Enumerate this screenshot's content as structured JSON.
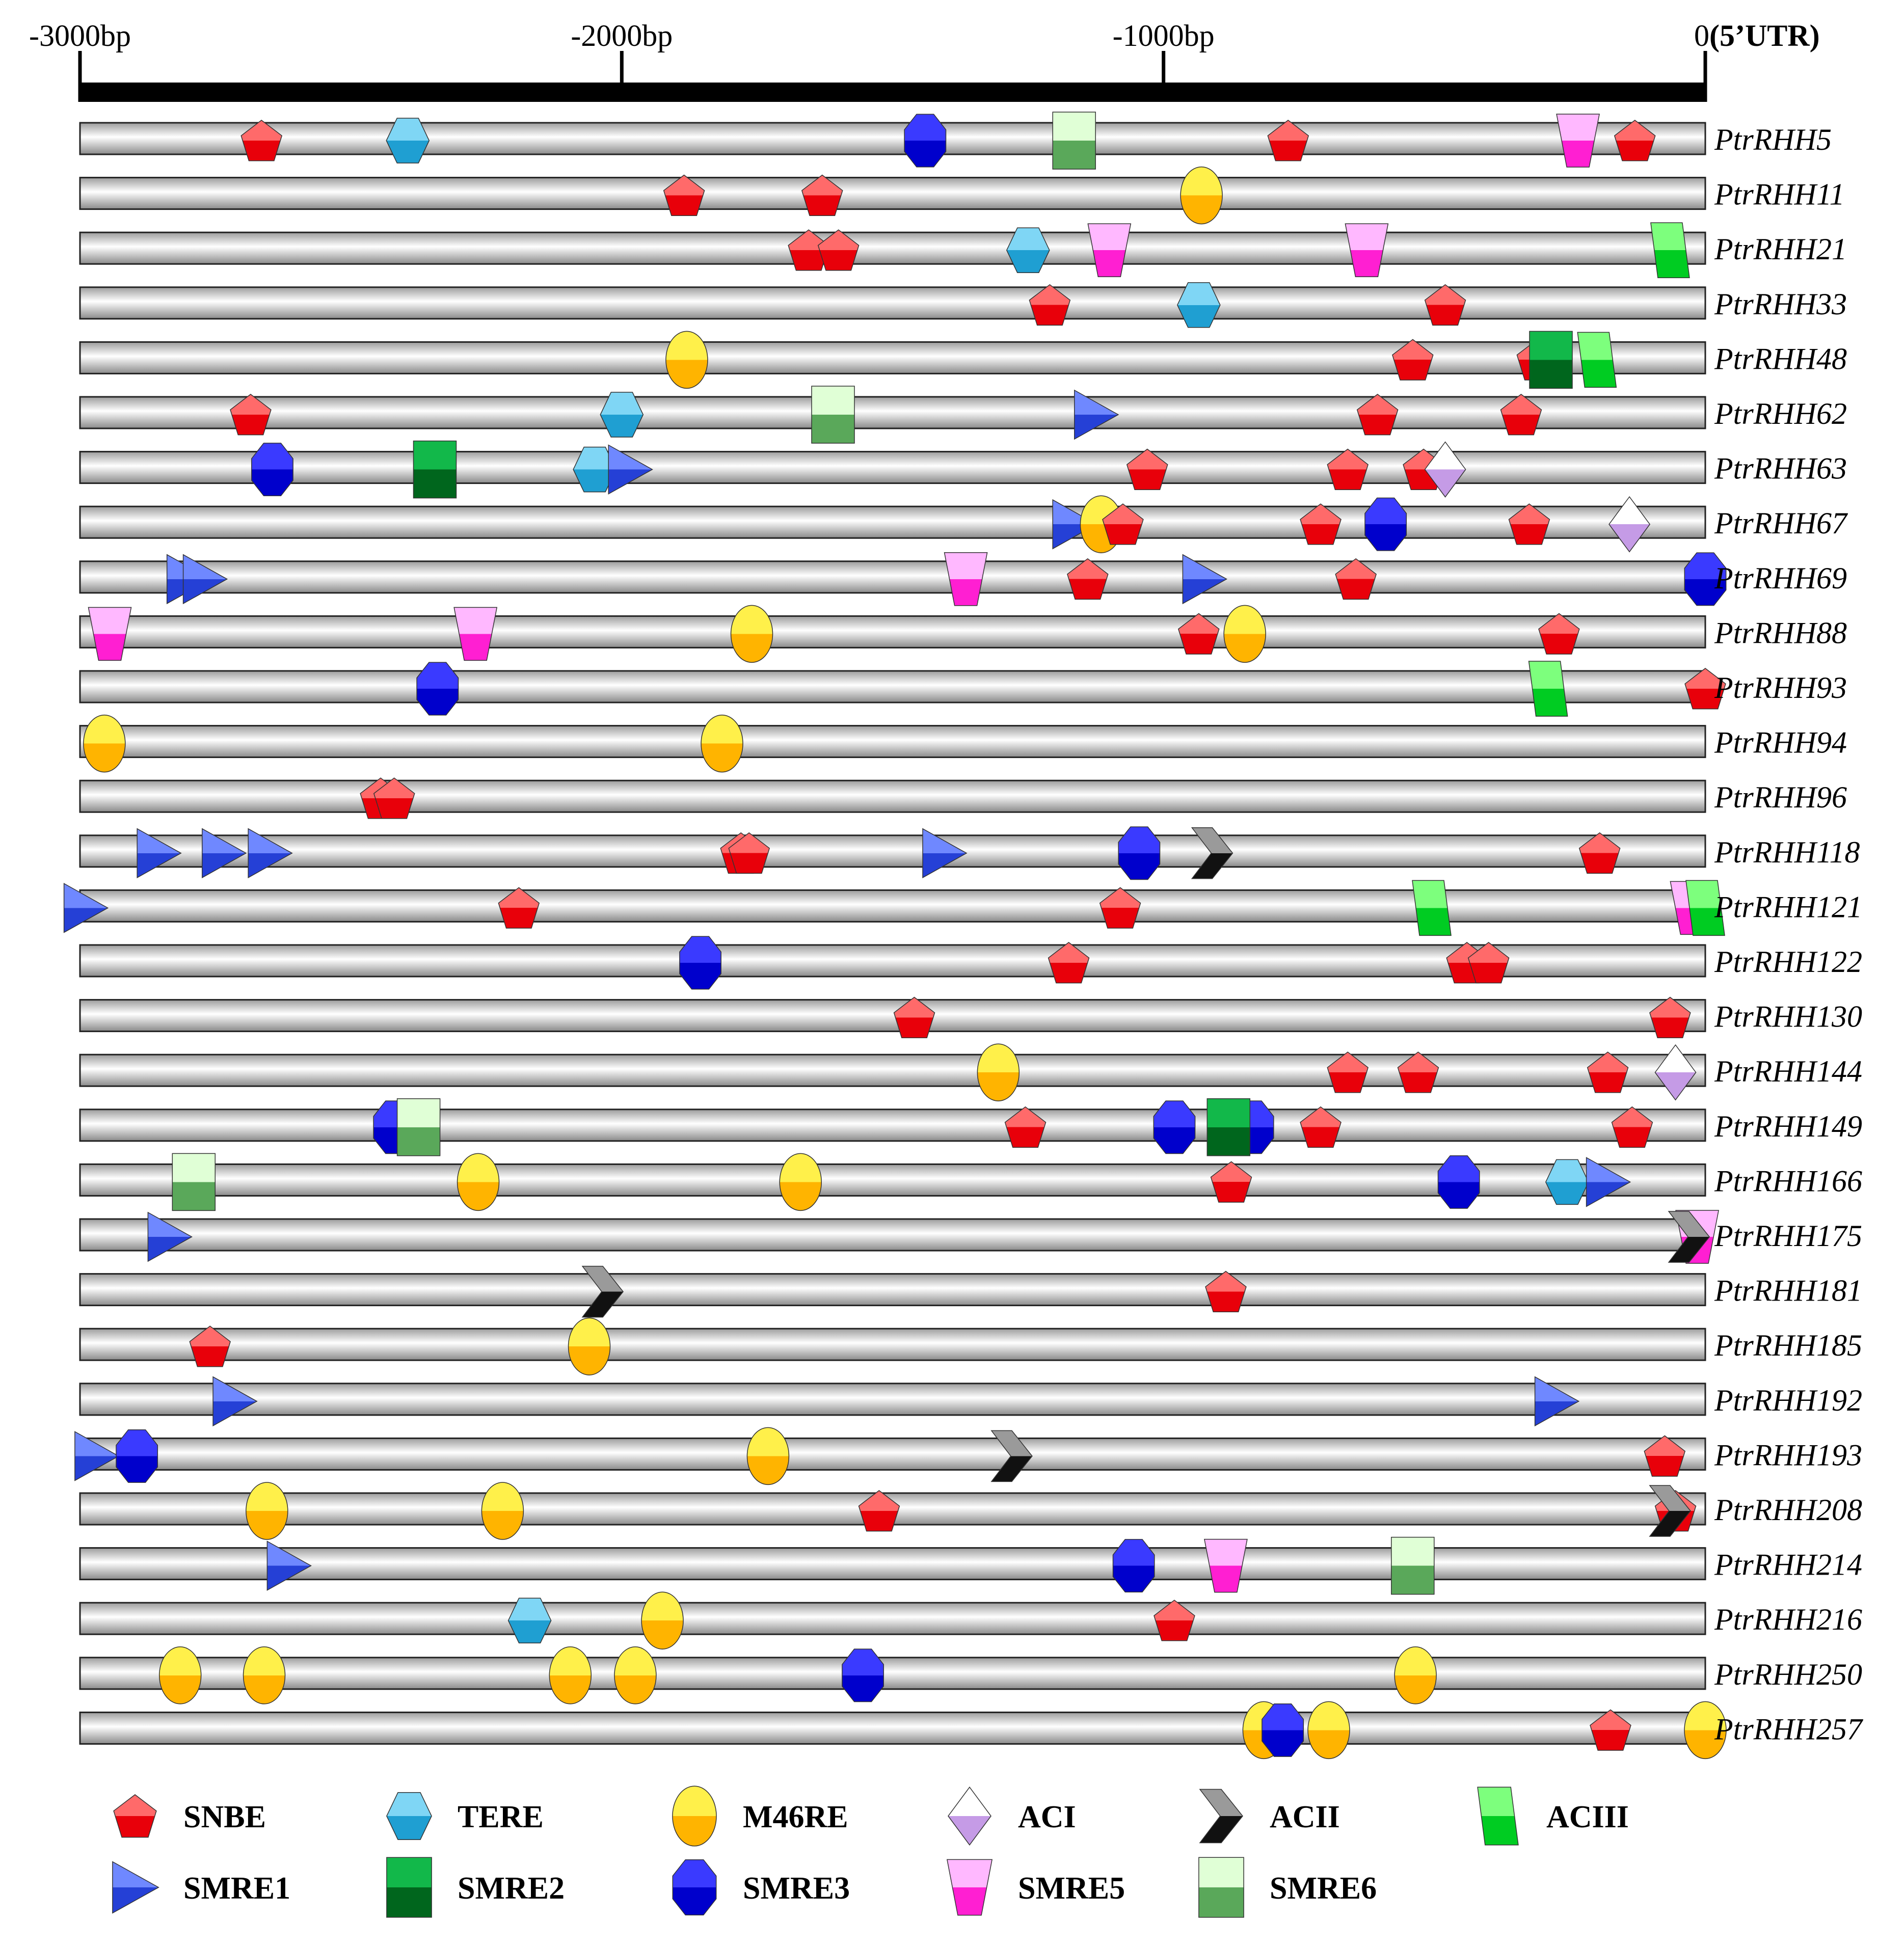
{
  "figure": {
    "scale": {
      "min_bp": -3000,
      "max_bp": 0,
      "ticks": [
        {
          "bp": -3000,
          "label": "-3000bp"
        },
        {
          "bp": -2000,
          "label": "-2000bp"
        },
        {
          "bp": -1000,
          "label": "-1000bp"
        },
        {
          "bp": 0,
          "label": "0",
          "label_bold": "(5’UTR)"
        }
      ]
    },
    "element_types": {
      "SNBE": {
        "label": "SNBE",
        "shape": "pentagon-icon",
        "colors": [
          "#ff6a6a",
          "#e8000a"
        ]
      },
      "TERE": {
        "label": "TERE",
        "shape": "hexagon-icon",
        "colors": [
          "#7fd6f5",
          "#1f9fd2"
        ]
      },
      "M46RE": {
        "label": "M46RE",
        "shape": "ellipse-icon",
        "colors": [
          "#fff04a",
          "#ffb400"
        ]
      },
      "ACI": {
        "label": "ACI",
        "shape": "diamond-icon",
        "colors": [
          "#ffffff",
          "#c59be6"
        ]
      },
      "ACII": {
        "label": "ACII",
        "shape": "chevron-icon",
        "colors": [
          "#9a9a9a",
          "#111111"
        ]
      },
      "ACIII": {
        "label": "ACIII",
        "shape": "parallelogram-icon",
        "colors": [
          "#7dff7d",
          "#00cc22"
        ]
      },
      "SMRE1": {
        "label": "SMRE1",
        "shape": "triangle-icon",
        "colors": [
          "#6f88ff",
          "#2540d6"
        ]
      },
      "SMRE2": {
        "label": "SMRE2",
        "shape": "square-icon",
        "colors": [
          "#12b84a",
          "#00661d"
        ]
      },
      "SMRE3": {
        "label": "SMRE3",
        "shape": "octagon-icon",
        "colors": [
          "#3a3aff",
          "#0000cc"
        ]
      },
      "SMRE5": {
        "label": "SMRE5",
        "shape": "trapezoid-icon",
        "colors": [
          "#ffb8ff",
          "#ff1fd2"
        ]
      },
      "SMRE6": {
        "label": "SMRE6",
        "shape": "square-icon",
        "colors": [
          "#e0ffd6",
          "#5aa85a"
        ]
      }
    },
    "legend_rows": [
      [
        "SNBE",
        "TERE",
        "M46RE",
        "ACI",
        "ACII",
        "ACIII"
      ],
      [
        "SMRE1",
        "SMRE2",
        "SMRE3",
        "SMRE5",
        "SMRE6"
      ]
    ],
    "genes": [
      {
        "name": "PtrRHH5",
        "elements": [
          [
            "SNBE",
            -2665
          ],
          [
            "TERE",
            -2395
          ],
          [
            "SMRE3",
            -1440
          ],
          [
            "SMRE6",
            -1165
          ],
          [
            "SNBE",
            -770
          ],
          [
            "SMRE5",
            -235
          ],
          [
            "SNBE",
            -130
          ]
        ]
      },
      {
        "name": "PtrRHH11",
        "elements": [
          [
            "SNBE",
            -1885
          ],
          [
            "SNBE",
            -1630
          ],
          [
            "M46RE",
            -930
          ]
        ]
      },
      {
        "name": "PtrRHH21",
        "elements": [
          [
            "SNBE",
            -1655
          ],
          [
            "SNBE",
            -1600
          ],
          [
            "TERE",
            -1250
          ],
          [
            "SMRE5",
            -1100
          ],
          [
            "SMRE5",
            -625
          ],
          [
            "ACIII",
            -65
          ]
        ]
      },
      {
        "name": "PtrRHH33",
        "elements": [
          [
            "SNBE",
            -1210
          ],
          [
            "TERE",
            -935
          ],
          [
            "SNBE",
            -480
          ]
        ]
      },
      {
        "name": "PtrRHH48",
        "elements": [
          [
            "M46RE",
            -1880
          ],
          [
            "SNBE",
            -540
          ],
          [
            "SNBE",
            -310
          ],
          [
            "SMRE2",
            -285
          ],
          [
            "ACIII",
            -200
          ]
        ]
      },
      {
        "name": "PtrRHH62",
        "elements": [
          [
            "SNBE",
            -2685
          ],
          [
            "TERE",
            -2000
          ],
          [
            "SMRE6",
            -1610
          ],
          [
            "SMRE1",
            -1125
          ],
          [
            "SNBE",
            -605
          ],
          [
            "SNBE",
            -340
          ]
        ]
      },
      {
        "name": "PtrRHH63",
        "elements": [
          [
            "SMRE3",
            -2645
          ],
          [
            "SMRE2",
            -2345
          ],
          [
            "TERE",
            -2050
          ],
          [
            "SMRE1",
            -1985
          ],
          [
            "SNBE",
            -1030
          ],
          [
            "SNBE",
            -660
          ],
          [
            "SNBE",
            -520
          ],
          [
            "ACI",
            -480
          ]
        ]
      },
      {
        "name": "PtrRHH67",
        "elements": [
          [
            "SMRE1",
            -1165
          ],
          [
            "M46RE",
            -1115
          ],
          [
            "SNBE",
            -1075
          ],
          [
            "SNBE",
            -710
          ],
          [
            "SMRE3",
            -590
          ],
          [
            "SNBE",
            -325
          ],
          [
            "ACI",
            -140
          ]
        ]
      },
      {
        "name": "PtrRHH69",
        "elements": [
          [
            "SMRE1",
            -2800
          ],
          [
            "SMRE1",
            -2770
          ],
          [
            "SMRE5",
            -1365
          ],
          [
            "SNBE",
            -1140
          ],
          [
            "SMRE1",
            -925
          ],
          [
            "SNBE",
            -645
          ],
          [
            "SMRE3",
            0
          ]
        ]
      },
      {
        "name": "PtrRHH88",
        "elements": [
          [
            "SMRE5",
            -2945
          ],
          [
            "SMRE5",
            -2270
          ],
          [
            "M46RE",
            -1760
          ],
          [
            "SNBE",
            -935
          ],
          [
            "M46RE",
            -850
          ],
          [
            "SNBE",
            -270
          ]
        ]
      },
      {
        "name": "PtrRHH93",
        "elements": [
          [
            "SMRE3",
            -2340
          ],
          [
            "ACIII",
            -290
          ],
          [
            "SNBE",
            0
          ]
        ]
      },
      {
        "name": "PtrRHH94",
        "elements": [
          [
            "M46RE",
            -2955
          ],
          [
            "M46RE",
            -1815
          ]
        ]
      },
      {
        "name": "PtrRHH96",
        "elements": [
          [
            "SNBE",
            -2445
          ],
          [
            "SNBE",
            -2420
          ]
        ]
      },
      {
        "name": "PtrRHH118",
        "elements": [
          [
            "SMRE1",
            -2855
          ],
          [
            "SMRE1",
            -2735
          ],
          [
            "SMRE1",
            -2650
          ],
          [
            "SNBE",
            -1780
          ],
          [
            "SNBE",
            -1765
          ],
          [
            "SMRE1",
            -1405
          ],
          [
            "SMRE3",
            -1045
          ],
          [
            "ACII",
            -910
          ],
          [
            "SNBE",
            -195
          ]
        ]
      },
      {
        "name": "PtrRHH121",
        "elements": [
          [
            "SMRE1",
            -2990
          ],
          [
            "SNBE",
            -2190
          ],
          [
            "SNBE",
            -1080
          ],
          [
            "ACIII",
            -505
          ],
          [
            "SMRE5",
            -25
          ],
          [
            "ACIII",
            0
          ]
        ]
      },
      {
        "name": "PtrRHH122",
        "elements": [
          [
            "SMRE3",
            -1855
          ],
          [
            "SNBE",
            -1175
          ],
          [
            "SNBE",
            -440
          ],
          [
            "SNBE",
            -400
          ]
        ]
      },
      {
        "name": "PtrRHH130",
        "elements": [
          [
            "SNBE",
            -1460
          ],
          [
            "SNBE",
            -65
          ]
        ]
      },
      {
        "name": "PtrRHH144",
        "elements": [
          [
            "M46RE",
            -1305
          ],
          [
            "SNBE",
            -660
          ],
          [
            "SNBE",
            -530
          ],
          [
            "SNBE",
            -180
          ],
          [
            "ACI",
            -55
          ]
        ]
      },
      {
        "name": "PtrRHH149",
        "elements": [
          [
            "SMRE3",
            -2420
          ],
          [
            "SMRE6",
            -2375
          ],
          [
            "SNBE",
            -1255
          ],
          [
            "SMRE3",
            -980
          ],
          [
            "SMRE3",
            -835
          ],
          [
            "SMRE2",
            -880
          ],
          [
            "SNBE",
            -710
          ],
          [
            "SNBE",
            -135
          ]
        ]
      },
      {
        "name": "PtrRHH166",
        "elements": [
          [
            "SMRE6",
            -2790
          ],
          [
            "M46RE",
            -2265
          ],
          [
            "M46RE",
            -1670
          ],
          [
            "SNBE",
            -875
          ],
          [
            "SMRE3",
            -455
          ],
          [
            "TERE",
            -255
          ],
          [
            "SMRE1",
            -180
          ]
        ]
      },
      {
        "name": "PtrRHH175",
        "elements": [
          [
            "SMRE1",
            -2835
          ],
          [
            "SMRE5",
            -15
          ],
          [
            "ACII",
            -30
          ]
        ]
      },
      {
        "name": "PtrRHH181",
        "elements": [
          [
            "ACII",
            -2035
          ],
          [
            "SNBE",
            -885
          ]
        ]
      },
      {
        "name": "PtrRHH185",
        "elements": [
          [
            "SNBE",
            -2760
          ],
          [
            "M46RE",
            -2060
          ]
        ]
      },
      {
        "name": "PtrRHH192",
        "elements": [
          [
            "SMRE1",
            -2715
          ],
          [
            "SMRE1",
            -275
          ]
        ]
      },
      {
        "name": "PtrRHH193",
        "elements": [
          [
            "SMRE1",
            -2970
          ],
          [
            "SMRE3",
            -2895
          ],
          [
            "M46RE",
            -1730
          ],
          [
            "ACII",
            -1280
          ],
          [
            "SNBE",
            -75
          ]
        ]
      },
      {
        "name": "PtrRHH208",
        "elements": [
          [
            "M46RE",
            -2655
          ],
          [
            "M46RE",
            -2220
          ],
          [
            "SNBE",
            -1525
          ],
          [
            "SNBE",
            -55
          ],
          [
            "ACII",
            -65
          ]
        ]
      },
      {
        "name": "PtrRHH214",
        "elements": [
          [
            "SMRE1",
            -2615
          ],
          [
            "SMRE3",
            -1055
          ],
          [
            "SMRE5",
            -885
          ],
          [
            "SMRE6",
            -540
          ]
        ]
      },
      {
        "name": "PtrRHH216",
        "elements": [
          [
            "TERE",
            -2170
          ],
          [
            "M46RE",
            -1925
          ],
          [
            "SNBE",
            -980
          ]
        ]
      },
      {
        "name": "PtrRHH250",
        "elements": [
          [
            "M46RE",
            -2815
          ],
          [
            "M46RE",
            -2660
          ],
          [
            "M46RE",
            -2095
          ],
          [
            "M46RE",
            -1975
          ],
          [
            "SMRE3",
            -1555
          ],
          [
            "M46RE",
            -535
          ]
        ]
      },
      {
        "name": "PtrRHH257",
        "elements": [
          [
            "M46RE",
            -815
          ],
          [
            "SMRE3",
            -780
          ],
          [
            "M46RE",
            -695
          ],
          [
            "SNBE",
            -175
          ],
          [
            "M46RE",
            0
          ]
        ]
      }
    ]
  }
}
